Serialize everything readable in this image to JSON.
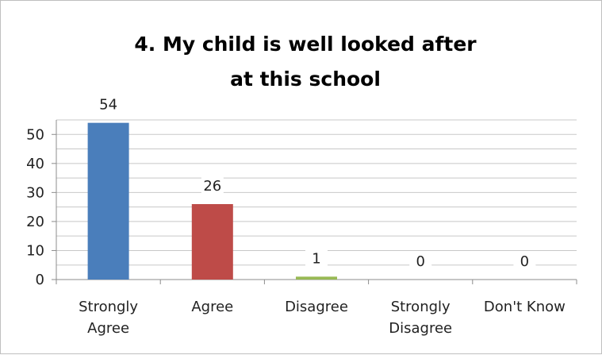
{
  "chart_data": {
    "type": "bar",
    "title_lines": [
      "4. My child is well looked after",
      "at this school"
    ],
    "categories": [
      [
        "Strongly",
        "Agree"
      ],
      [
        "Agree"
      ],
      [
        "Disagree"
      ],
      [
        "Strongly",
        "Disagree"
      ],
      [
        "Don't Know"
      ]
    ],
    "values": [
      54,
      26,
      1,
      0,
      0
    ],
    "colors": [
      "#4a7ebb",
      "#be4b48",
      "#98b954",
      "#7d60a0",
      "#46aac5"
    ],
    "ylim": [
      0,
      55
    ],
    "yticks": [
      0,
      10,
      20,
      30,
      40,
      50
    ],
    "gridlines": true,
    "legend": "none",
    "data_labels": true
  }
}
